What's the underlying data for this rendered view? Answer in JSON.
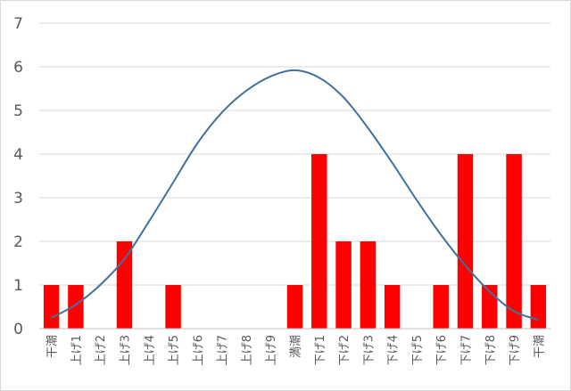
{
  "chart_data": {
    "type": "bar",
    "categories": [
      "干潮",
      "上げ1",
      "上げ2",
      "上げ3",
      "上げ4",
      "上げ5",
      "上げ6",
      "上げ7",
      "上げ8",
      "上げ9",
      "満潮",
      "下げ1",
      "下げ2",
      "下げ3",
      "下げ4",
      "下げ5",
      "下げ6",
      "下げ7",
      "下げ8",
      "下げ9",
      "干潮"
    ],
    "values": [
      1,
      1,
      0,
      2,
      0,
      1,
      0,
      0,
      0,
      0,
      1,
      4,
      2,
      2,
      1,
      0,
      1,
      4,
      1,
      4,
      1
    ],
    "bar_color": "#ff0000",
    "line_series": {
      "type": "line",
      "smooth": true,
      "color": "#41719c",
      "values": [
        0.25,
        0.55,
        1.0,
        1.6,
        2.45,
        3.35,
        4.25,
        4.95,
        5.45,
        5.78,
        5.92,
        5.75,
        5.3,
        4.6,
        3.8,
        2.95,
        2.15,
        1.45,
        0.85,
        0.4,
        0.2
      ]
    },
    "ylim": [
      0,
      7
    ],
    "yticks": [
      0,
      1,
      2,
      3,
      4,
      5,
      6,
      7
    ],
    "grid": true,
    "title": "",
    "xlabel": "",
    "ylabel": ""
  }
}
